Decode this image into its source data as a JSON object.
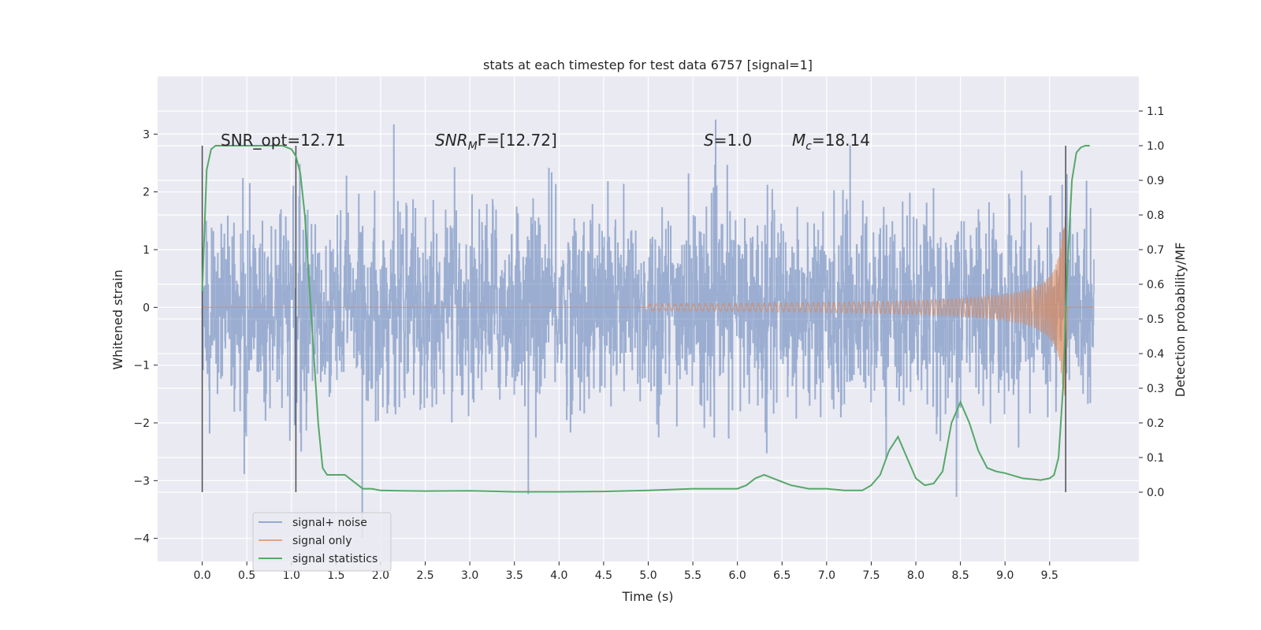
{
  "chart_data": {
    "type": "line",
    "title": "stats at each timestep for test data 6757 [signal=1]",
    "xlabel": "Time (s)",
    "ylabel": "Whitened strain",
    "ylabel_right": "Detection probability/MF",
    "xlim": [
      -0.5,
      10.5
    ],
    "ylim": [
      -4.4,
      4.0
    ],
    "ylim_right": [
      -0.2,
      1.2
    ],
    "grid": true,
    "x_ticks": [
      "0.0",
      "0.5",
      "1.0",
      "1.5",
      "2.0",
      "2.5",
      "3.0",
      "3.5",
      "4.0",
      "4.5",
      "5.0",
      "5.5",
      "6.0",
      "6.5",
      "7.0",
      "7.5",
      "8.0",
      "8.5",
      "9.0",
      "9.5"
    ],
    "y_ticks": [
      "-4",
      "-3",
      "-2",
      "-1",
      "0",
      "1",
      "2",
      "3"
    ],
    "y_ticks_right": [
      "0.0",
      "0.1",
      "0.2",
      "0.3",
      "0.4",
      "0.5",
      "0.6",
      "0.7",
      "0.8",
      "0.9",
      "1.0",
      "1.1"
    ],
    "annotations": {
      "snr_opt": "SNR_opt=12.71",
      "snr_mf_prefix": "SNR",
      "snr_mf_sub": "M",
      "snr_mf_suffix": "F=[12.72]",
      "s_prefix": "S",
      "s_suffix": "=1.0",
      "mc_prefix": "M",
      "mc_sub": "c",
      "mc_suffix": "=18.14"
    },
    "colors": {
      "noise": "#4c72b0",
      "signal": "#dd8452",
      "stat": "#55a868",
      "background": "#eaeaf2"
    },
    "series": [
      {
        "name": "signal+ noise",
        "note_envelope": {
          "upper_typical": 1.5,
          "lower_typical": -1.5,
          "spike_max": 3.6,
          "spike_min": -4.0
        }
      },
      {
        "name": "signal only",
        "chirp": {
          "start": 5.0,
          "end": 9.68,
          "max_amplitude": 1.6
        }
      },
      {
        "name": "signal statistics",
        "axis": "right",
        "x": [
          0.0,
          0.05,
          0.1,
          0.15,
          0.2,
          0.3,
          0.5,
          0.7,
          0.9,
          1.0,
          1.05,
          1.1,
          1.15,
          1.2,
          1.25,
          1.3,
          1.35,
          1.4,
          1.5,
          1.6,
          1.7,
          1.8,
          1.9,
          2.0,
          2.5,
          3.0,
          3.5,
          4.0,
          4.5,
          5.0,
          5.5,
          6.0,
          6.1,
          6.2,
          6.3,
          6.4,
          6.5,
          6.6,
          6.8,
          7.0,
          7.2,
          7.4,
          7.5,
          7.6,
          7.7,
          7.8,
          7.9,
          8.0,
          8.1,
          8.2,
          8.3,
          8.4,
          8.5,
          8.6,
          8.7,
          8.8,
          8.9,
          9.0,
          9.2,
          9.4,
          9.5,
          9.55,
          9.6,
          9.65,
          9.7,
          9.75,
          9.8,
          9.85,
          9.9,
          9.95
        ],
        "values": [
          0.58,
          0.93,
          0.99,
          1.0,
          1.0,
          1.0,
          1.0,
          1.0,
          1.0,
          0.99,
          0.97,
          0.92,
          0.8,
          0.6,
          0.4,
          0.2,
          0.07,
          0.05,
          0.05,
          0.05,
          0.03,
          0.01,
          0.01,
          0.005,
          0.003,
          0.004,
          0.001,
          0.001,
          0.002,
          0.005,
          0.01,
          0.01,
          0.02,
          0.04,
          0.05,
          0.04,
          0.03,
          0.02,
          0.01,
          0.01,
          0.005,
          0.005,
          0.02,
          0.05,
          0.12,
          0.16,
          0.1,
          0.04,
          0.02,
          0.025,
          0.06,
          0.2,
          0.26,
          0.2,
          0.12,
          0.07,
          0.06,
          0.055,
          0.04,
          0.035,
          0.04,
          0.05,
          0.1,
          0.3,
          0.65,
          0.9,
          0.98,
          0.995,
          1.0,
          1.0
        ]
      }
    ],
    "vlines": [
      0.0,
      1.05,
      9.68
    ],
    "legend_position": "lower-left"
  }
}
